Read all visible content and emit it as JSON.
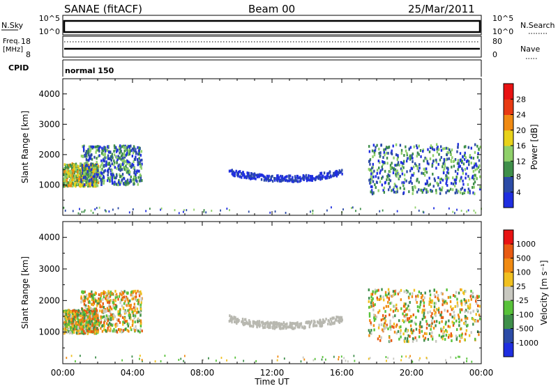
{
  "header": {
    "left": "SANAE (fitACF)",
    "center": "Beam 00",
    "right": "25/Mar/2011"
  },
  "nsky_panel": {
    "left_label": "N.Sky",
    "left_ticks": [
      "10^5",
      "10^0"
    ],
    "right_label": "N.Search",
    "right_ticks": [
      "10^5",
      "10^0"
    ]
  },
  "freq_panel": {
    "left_label_line1": "Freq.",
    "left_label_line2": "[MHz]",
    "left_ticks": [
      "18",
      "8"
    ],
    "right_label": "Nave",
    "right_ticks": [
      "80",
      "0"
    ]
  },
  "cpid_panel": {
    "label": "CPID",
    "program": "normal 150"
  },
  "x_axis": {
    "label": "Time UT",
    "ticks": [
      "00:00",
      "04:00",
      "08:00",
      "12:00",
      "16:00",
      "20:00",
      "00:00"
    ],
    "range_hours": [
      0,
      24
    ]
  },
  "power_panel": {
    "ylabel": "Slant Range [km]",
    "yticks": [
      "1000",
      "2000",
      "3000",
      "4000"
    ],
    "colorbar_label": "Power [dB]",
    "colorbar_ticks": [
      "4",
      "8",
      "12",
      "16",
      "20",
      "24",
      "28"
    ],
    "colors": [
      "#1f2ee0",
      "#2c4ba6",
      "#3f8f4a",
      "#8fd06a",
      "#e8d21a",
      "#f08a12",
      "#e83a12",
      "#e81212"
    ]
  },
  "velocity_panel": {
    "ylabel": "Slant Range [km]",
    "yticks": [
      "1000",
      "2000",
      "3000",
      "4000"
    ],
    "colorbar_label": "Velocity [m s⁻¹]",
    "colorbar_ticks": [
      "1000",
      "500",
      "100",
      "25",
      "-25",
      "-100",
      "-500",
      "-1000"
    ],
    "colors": [
      "#1f2ee0",
      "#2c4ba6",
      "#3f8f4a",
      "#58c23a",
      "#c8c8c0",
      "#f0c020",
      "#f08a12",
      "#e85a12",
      "#e81212"
    ],
    "ground_scatter_color": "#b8b8b0"
  },
  "chart_data": {
    "type": "heatmap",
    "x_range_hours": [
      0,
      24
    ],
    "y_range_km": [
      0,
      4500
    ],
    "scatter_regions": [
      {
        "t0": 0.0,
        "t1": 2.0,
        "r0": 950,
        "r1": 1700,
        "level": "strong"
      },
      {
        "t0": 1.0,
        "t1": 4.5,
        "r0": 1000,
        "r1": 2300,
        "level": "moderate"
      },
      {
        "t0": 9.5,
        "t1": 16.0,
        "r0": 950,
        "r1": 1450,
        "level": "ground"
      },
      {
        "t0": 17.5,
        "t1": 23.9,
        "r0": 700,
        "r1": 2350,
        "level": "moderate"
      }
    ]
  }
}
